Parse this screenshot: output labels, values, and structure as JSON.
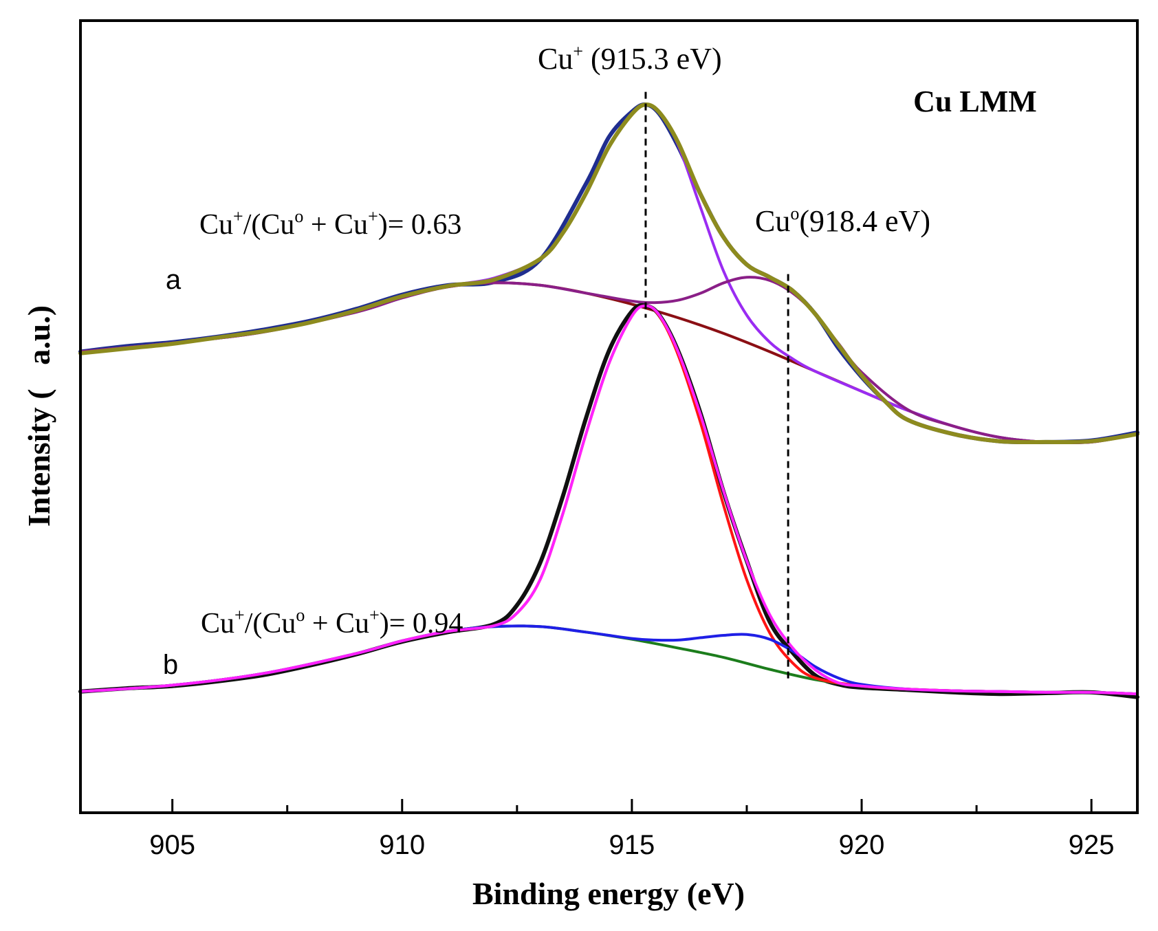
{
  "chart_data": {
    "type": "line",
    "title": "Cu LMM",
    "xlabel": "Binding energy (eV)",
    "ylabel": "Intensity (   a.u.)",
    "xlim": [
      903,
      926
    ],
    "ylim": [
      0,
      100
    ],
    "x_ticks": [
      905,
      910,
      915,
      920,
      925
    ],
    "x_tick_labels": [
      "905",
      "910",
      "915",
      "920",
      "925"
    ],
    "y_ticks_shown": false,
    "grid": false,
    "legend": "none",
    "panels": [
      {
        "label": "a",
        "ratio_text": "Cu+/(Cuo + Cu+)= 0.63",
        "series": [
          {
            "role": "raw",
            "color": "#1f2d8f",
            "x": [
              903,
              904,
              905,
              906,
              907,
              908,
              909,
              910,
              911,
              912,
              913,
              914,
              914.5,
              915,
              915.3,
              915.6,
              916,
              916.5,
              917,
              917.5,
              918,
              918.5,
              919,
              919.5,
              920,
              920.5,
              921,
              922,
              923,
              924,
              925,
              926
            ],
            "y": [
              58.2,
              58.9,
              59.4,
              60.1,
              61.0,
              62.1,
              63.6,
              65.4,
              66.6,
              67.0,
              69.8,
              79.4,
              85.3,
              88.5,
              89.4,
              88.2,
              84.2,
              78.0,
              72.6,
              69.2,
              67.6,
              65.9,
              62.9,
              58.6,
              55.0,
              52.0,
              49.6,
              47.8,
              46.9,
              46.8,
              47.0,
              48.0
            ]
          },
          {
            "role": "background",
            "color": "#8b0f14",
            "x": [
              903,
              905,
              907,
              909,
              910,
              911,
              912,
              913,
              914,
              915,
              916,
              917,
              918,
              919,
              920,
              921,
              922,
              923,
              924,
              925,
              926
            ],
            "y": [
              58.2,
              59.3,
              60.7,
              63.2,
              65.0,
              66.4,
              66.9,
              66.6,
              65.6,
              64.2,
              62.5,
              60.5,
              58.2,
              55.7,
              53.2,
              50.8,
              48.8,
              47.4,
              46.8,
              46.8,
              47.8
            ]
          },
          {
            "role": "Cu+ component",
            "color": "#9a2cf2",
            "x": [
              903,
              905,
              907,
              909,
              910,
              911,
              912,
              913,
              913.5,
              914,
              914.5,
              915,
              915.3,
              915.6,
              916,
              916.5,
              917,
              917.5,
              918,
              918.5,
              919,
              920,
              921,
              922,
              923,
              924,
              925,
              926
            ],
            "y": [
              58.2,
              59.3,
              60.7,
              63.2,
              65.0,
              66.5,
              67.5,
              69.9,
              73.2,
              78.2,
              84.1,
              88.2,
              89.4,
              88.3,
              84.4,
              76.3,
              68.3,
              62.8,
              59.4,
              57.3,
              55.7,
              53.2,
              50.8,
              48.8,
              47.4,
              46.8,
              46.8,
              47.8
            ]
          },
          {
            "role": "Cuo component",
            "color": "#8a1f87",
            "x": [
              903,
              905,
              907,
              909,
              910,
              911,
              912,
              913,
              914,
              915,
              915.5,
              916,
              916.5,
              917,
              917.5,
              918,
              918.5,
              919,
              919.5,
              920,
              921,
              922,
              923,
              924,
              925,
              926
            ],
            "y": [
              58.2,
              59.3,
              60.7,
              63.2,
              65.0,
              66.4,
              66.9,
              66.6,
              65.6,
              64.6,
              64.4,
              64.7,
              65.6,
              66.9,
              67.6,
              67.2,
              65.6,
              62.9,
              59.2,
              55.6,
              50.9,
              48.8,
              47.4,
              46.8,
              46.8,
              47.8
            ]
          },
          {
            "role": "envelope",
            "color": "#8d8b1e",
            "x": [
              903,
              904,
              905,
              906,
              907,
              908,
              909,
              910,
              911,
              912,
              913,
              913.5,
              914,
              914.5,
              915,
              915.3,
              915.6,
              916,
              916.5,
              917,
              917.5,
              918,
              918.5,
              919,
              919.5,
              920,
              920.5,
              921,
              922,
              923,
              924,
              925,
              926
            ],
            "y": [
              58.0,
              58.6,
              59.2,
              60.0,
              60.8,
              61.9,
              63.4,
              65.2,
              66.5,
              67.3,
              69.9,
              73.2,
              78.2,
              84.1,
              88.2,
              89.4,
              88.4,
              84.7,
              78.0,
              72.6,
              69.2,
              67.6,
              65.9,
              62.9,
              59.0,
              55.2,
              52.0,
              49.6,
              47.8,
              46.9,
              46.8,
              46.9,
              47.8
            ]
          }
        ]
      },
      {
        "label": "b",
        "ratio_text": "Cu+/(Cuo + Cu+)= 0.94",
        "series": [
          {
            "role": "raw",
            "color": "#101010",
            "x": [
              903,
              904,
              905,
              906,
              907,
              908,
              909,
              910,
              911,
              912,
              912.5,
              913,
              913.5,
              914,
              914.5,
              915,
              915.3,
              915.6,
              916,
              916.5,
              917,
              917.5,
              918,
              918.5,
              919,
              919.5,
              920,
              921,
              922,
              923,
              924,
              925,
              926
            ],
            "y": [
              15.3,
              15.7,
              16.0,
              16.6,
              17.4,
              18.6,
              20.0,
              21.6,
              22.8,
              23.8,
              26.2,
              31.5,
              40.0,
              49.8,
              58.3,
              63.3,
              64.0,
              62.8,
              58.4,
              50.3,
              40.4,
              31.8,
              24.1,
              20.2,
              17.3,
              16.2,
              15.8,
              15.5,
              15.2,
              15.0,
              15.1,
              15.2,
              14.6
            ]
          },
          {
            "role": "background",
            "color": "#1c7d1c",
            "x": [
              903,
              905,
              907,
              909,
              910,
              911,
              912,
              913,
              914,
              915,
              916,
              917,
              918,
              919,
              920,
              921,
              922,
              923,
              924,
              925,
              926
            ],
            "y": [
              15.3,
              16.1,
              17.6,
              20.1,
              21.7,
              22.9,
              23.5,
              23.5,
              22.8,
              21.9,
              20.8,
              19.6,
              18.1,
              16.8,
              16.0,
              15.6,
              15.4,
              15.3,
              15.2,
              15.2,
              15.0
            ]
          },
          {
            "role": "Cu+ component",
            "color": "#ff1414",
            "x": [
              903,
              905,
              907,
              909,
              910,
              911,
              912,
              912.5,
              913,
              913.5,
              914,
              914.5,
              915,
              915.3,
              915.6,
              916,
              916.5,
              917,
              917.5,
              918,
              918.5,
              919,
              920,
              921,
              922,
              923,
              924,
              925,
              926
            ],
            "y": [
              15.3,
              16.1,
              17.6,
              20.1,
              21.7,
              22.9,
              23.6,
              25.2,
              29.4,
              37.8,
              47.8,
              56.7,
              62.7,
              64.0,
              62.7,
              57.9,
              49.1,
              38.7,
              29.4,
              22.7,
              18.9,
              17.0,
              16.0,
              15.6,
              15.4,
              15.3,
              15.2,
              15.2,
              15.0
            ]
          },
          {
            "role": "Cuo component",
            "color": "#1f1fe6",
            "x": [
              903,
              905,
              907,
              909,
              910,
              911,
              912,
              913,
              914,
              915,
              915.5,
              916,
              916.5,
              917,
              917.5,
              918,
              918.5,
              919,
              919.5,
              920,
              921,
              922,
              923,
              924,
              925,
              926
            ],
            "y": [
              15.3,
              16.1,
              17.6,
              20.1,
              21.7,
              22.9,
              23.5,
              23.5,
              22.8,
              22.0,
              21.8,
              21.8,
              22.1,
              22.4,
              22.5,
              21.9,
              20.4,
              18.4,
              17.0,
              16.2,
              15.6,
              15.4,
              15.3,
              15.2,
              15.2,
              15.0
            ]
          },
          {
            "role": "envelope",
            "color": "#ff22ff",
            "x": [
              903,
              905,
              907,
              909,
              910,
              911,
              912,
              912.5,
              913,
              913.5,
              914,
              914.5,
              915,
              915.3,
              915.6,
              916,
              916.5,
              917,
              917.5,
              918,
              918.5,
              919,
              919.5,
              920,
              921,
              922,
              923,
              924,
              925,
              926
            ],
            "y": [
              15.3,
              16.1,
              17.6,
              20.1,
              21.7,
              22.9,
              23.6,
              25.2,
              29.4,
              37.8,
              47.8,
              56.7,
              62.7,
              64.0,
              62.8,
              58.3,
              50.1,
              40.5,
              31.8,
              25.0,
              20.8,
              18.0,
              16.4,
              16.0,
              15.6,
              15.4,
              15.3,
              15.2,
              15.2,
              15.0
            ]
          }
        ]
      }
    ],
    "reference_lines": [
      {
        "x": 915.3,
        "label_main": "Cu",
        "label_sup": "+",
        "label_rest": " (915.3 eV)",
        "y_from": 62.5,
        "y_to": 91
      },
      {
        "x": 918.4,
        "label_main": "Cu",
        "label_sup": "o",
        "label_rest": "(918.4 eV)",
        "y_from": 16.5,
        "y_to": 68
      }
    ]
  }
}
